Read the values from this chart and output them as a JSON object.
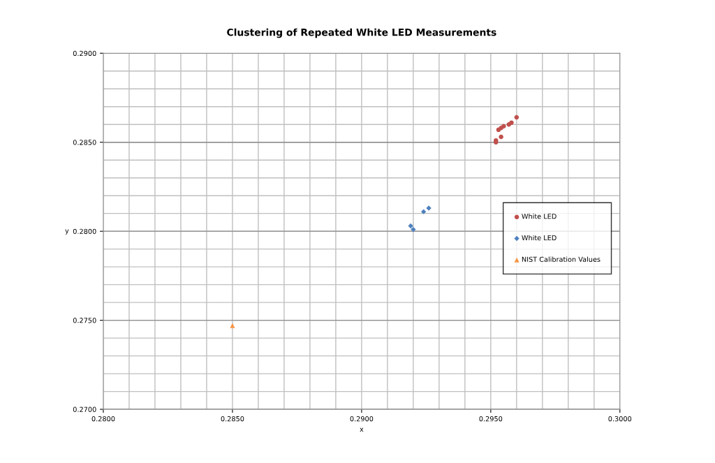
{
  "chart_data": {
    "type": "scatter",
    "title": "Clustering of Repeated White LED Measurements",
    "xlabel": "x",
    "ylabel": "y",
    "xlim": [
      0.28,
      0.3
    ],
    "ylim": [
      0.27,
      0.29
    ],
    "xticks": [
      {
        "value": 0.28,
        "label": "0.2800"
      },
      {
        "value": 0.285,
        "label": "0.2850"
      },
      {
        "value": 0.29,
        "label": "0.2900"
      },
      {
        "value": 0.295,
        "label": "0.2950"
      },
      {
        "value": 0.3,
        "label": "0.3000"
      }
    ],
    "yticks": [
      {
        "value": 0.27,
        "label": "0.2700"
      },
      {
        "value": 0.275,
        "label": "0.2750"
      },
      {
        "value": 0.28,
        "label": "0.2800"
      },
      {
        "value": 0.285,
        "label": "0.2850"
      },
      {
        "value": 0.29,
        "label": "0.2900"
      }
    ],
    "grid": true,
    "legend": "right",
    "series": [
      {
        "name": "White LED",
        "color": "#c0504d",
        "marker": "circle",
        "x": [
          0.296,
          0.2958,
          0.2957,
          0.2955,
          0.2954,
          0.2953,
          0.2954,
          0.2952,
          0.2952
        ],
        "values": [
          0.2864,
          0.2861,
          0.286,
          0.2859,
          0.2858,
          0.2857,
          0.2853,
          0.2851,
          0.285
        ]
      },
      {
        "name": "White LED",
        "color": "#4f81bd",
        "marker": "diamond",
        "x": [
          0.2919,
          0.292,
          0.2924,
          0.2926
        ],
        "values": [
          0.2803,
          0.2801,
          0.2811,
          0.2813
        ]
      },
      {
        "name": "NIST Calibration Values",
        "color": "#f79646",
        "marker": "triangle",
        "x": [
          0.285
        ],
        "values": [
          0.2747
        ]
      }
    ]
  }
}
